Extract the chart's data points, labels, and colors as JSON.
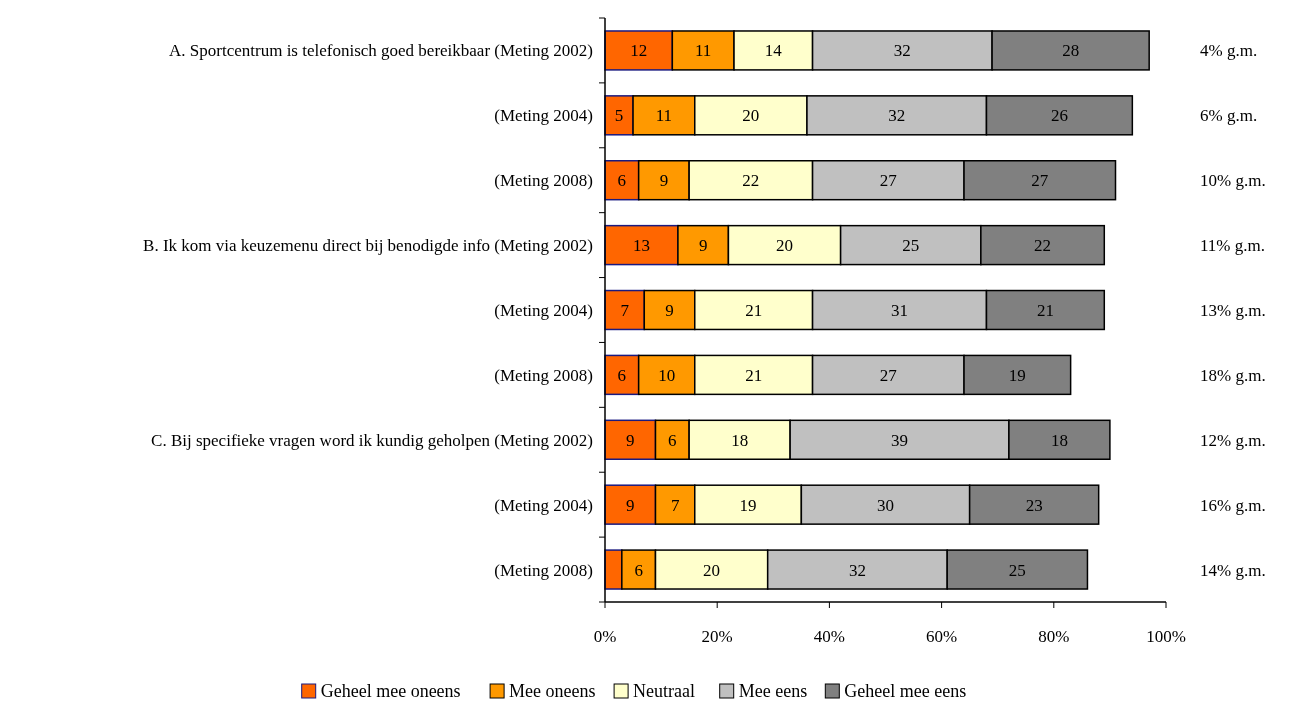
{
  "chart_data": {
    "type": "bar",
    "orientation": "horizontal",
    "stacked": true,
    "categories": [
      "A. Sportcentrum is telefonisch goed bereikbaar (Meting 2002)",
      "(Meting 2004)",
      "(Meting 2008)",
      "B. Ik kom via keuzemenu direct bij benodigde info (Meting 2002)",
      "(Meting 2004)",
      "(Meting 2008)",
      "C. Bij specifieke vragen word ik kundig geholpen (Meting 2002)",
      "(Meting 2004)",
      "(Meting 2008)"
    ],
    "series": [
      {
        "name": "Geheel mee oneens",
        "color": "#ff6600",
        "values": [
          12,
          5,
          6,
          13,
          7,
          6,
          9,
          9,
          3
        ],
        "value_labels": [
          "12",
          "5",
          "6",
          "13",
          "7",
          "6",
          "9",
          "9",
          null
        ]
      },
      {
        "name": "Mee oneens",
        "color": "#ff9900",
        "values": [
          11,
          11,
          9,
          9,
          9,
          10,
          6,
          7,
          6
        ],
        "value_labels": [
          "11",
          "11",
          "9",
          "9",
          "9",
          "10",
          "6",
          "7",
          "6"
        ]
      },
      {
        "name": "Neutraal",
        "color": "#ffffcc",
        "values": [
          14,
          20,
          22,
          20,
          21,
          21,
          18,
          19,
          20
        ],
        "value_labels": [
          "14",
          "20",
          "22",
          "20",
          "21",
          "21",
          "18",
          "19",
          "20"
        ]
      },
      {
        "name": "Mee eens",
        "color": "#c0c0c0",
        "values": [
          32,
          32,
          27,
          25,
          31,
          27,
          39,
          30,
          32
        ],
        "value_labels": [
          "32",
          "32",
          "27",
          "25",
          "31",
          "27",
          "39",
          "30",
          "32"
        ]
      },
      {
        "name": "Geheel mee eens",
        "color": "#808080",
        "values": [
          28,
          26,
          27,
          22,
          21,
          19,
          18,
          23,
          25
        ],
        "value_labels": [
          "28",
          "26",
          "27",
          "22",
          "21",
          "19",
          "18",
          "23",
          "25"
        ]
      }
    ],
    "xlim": [
      0,
      100
    ],
    "xticks": [
      {
        "value": 0,
        "label": "0%"
      },
      {
        "value": 20,
        "label": "20%"
      },
      {
        "value": 40,
        "label": "40%"
      },
      {
        "value": 60,
        "label": "60%"
      },
      {
        "value": 80,
        "label": "80%"
      },
      {
        "value": 100,
        "label": "100%"
      }
    ],
    "annotations": [
      "4% g.m.",
      "6% g.m.",
      "10% g.m.",
      "11% g.m.",
      "13% g.m.",
      "18% g.m.",
      "12% g.m.",
      "16% g.m.",
      "14% g.m."
    ],
    "grid": false,
    "legend": "bottom"
  }
}
